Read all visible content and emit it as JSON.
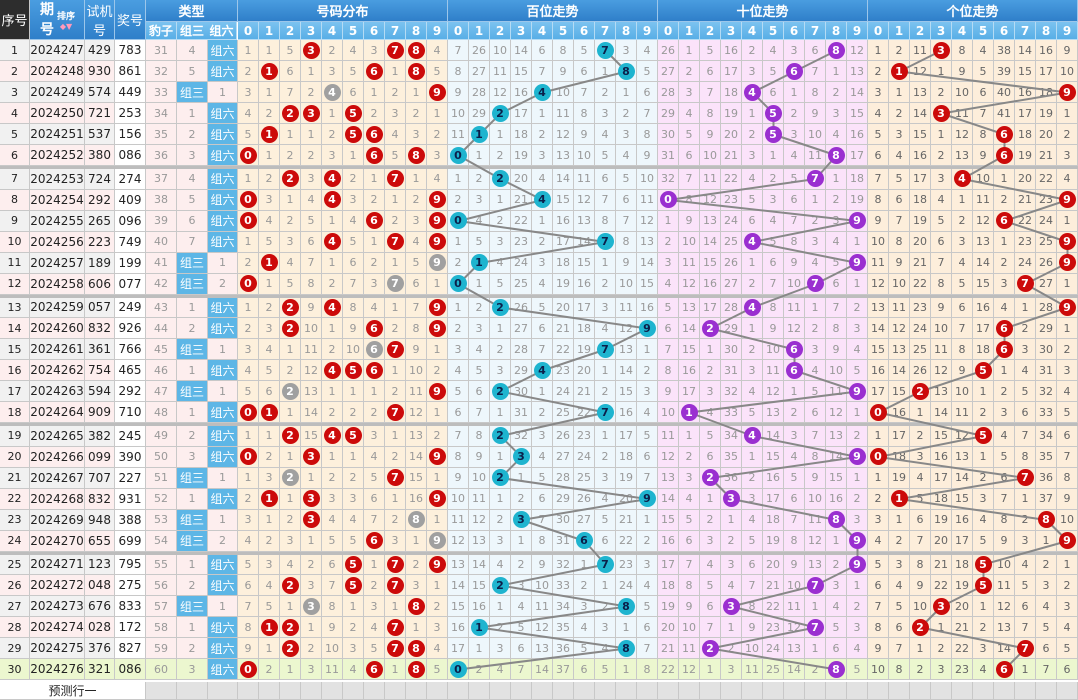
{
  "header": {
    "seq": "序号",
    "period": "期号",
    "sort": "排序",
    "test": "试机号",
    "award": "奖号",
    "type": "类型",
    "type_cols": [
      "豹子",
      "组三",
      "组六"
    ],
    "sections": [
      "号码分布",
      "百位走势",
      "十位走势",
      "个位走势"
    ],
    "digits": [
      "0",
      "1",
      "2",
      "3",
      "4",
      "5",
      "6",
      "7",
      "8",
      "9"
    ]
  },
  "labels": {
    "zu3": "组三",
    "zu6": "组六",
    "predict": "预测行一"
  },
  "colors": {
    "dist_ball": "#cc0a0a",
    "dist_repeat_ball": "#a0a0a0",
    "hundreds_ball": "#1eb4cf",
    "tens_ball": "#9a2fd0",
    "units_ball": "#cc0a0a",
    "line": "#888888",
    "dist_bg": "#fdf0dc",
    "hundreds_bg": "#eef7fc",
    "tens_bg": "#fbe3fa",
    "units_bg": "#fdeedb",
    "last_row_bg": "#ecf7cf"
  },
  "first_row_misses": {
    "baozi": 31,
    "zusan": 4,
    "distribution": [
      1,
      1,
      5,
      0,
      2,
      4,
      3,
      0,
      0,
      4
    ],
    "hundreds": [
      7,
      26,
      10,
      14,
      6,
      8,
      5,
      0,
      3,
      4
    ],
    "tens": [
      26,
      1,
      5,
      16,
      2,
      4,
      3,
      6,
      0,
      12
    ],
    "units": [
      1,
      2,
      11,
      0,
      8,
      4,
      38,
      14,
      16,
      9
    ]
  },
  "rows": [
    {
      "seq": "1",
      "period": "2024247",
      "test": "429",
      "award": "783"
    },
    {
      "seq": "2",
      "period": "2024248",
      "test": "930",
      "award": "861"
    },
    {
      "seq": "3",
      "period": "2024249",
      "test": "574",
      "award": "449"
    },
    {
      "seq": "4",
      "period": "2024250",
      "test": "721",
      "award": "253"
    },
    {
      "seq": "5",
      "period": "2024251",
      "test": "537",
      "award": "156"
    },
    {
      "seq": "6",
      "period": "2024252",
      "test": "380",
      "award": "086"
    },
    {
      "seq": "7",
      "period": "2024253",
      "test": "724",
      "award": "274"
    },
    {
      "seq": "8",
      "period": "2024254",
      "test": "292",
      "award": "409"
    },
    {
      "seq": "9",
      "period": "2024255",
      "test": "265",
      "award": "096"
    },
    {
      "seq": "10",
      "period": "2024256",
      "test": "223",
      "award": "749"
    },
    {
      "seq": "11",
      "period": "2024257",
      "test": "189",
      "award": "199"
    },
    {
      "seq": "12",
      "period": "2024258",
      "test": "606",
      "award": "077"
    },
    {
      "seq": "13",
      "period": "2024259",
      "test": "057",
      "award": "249"
    },
    {
      "seq": "14",
      "period": "2024260",
      "test": "832",
      "award": "926"
    },
    {
      "seq": "15",
      "period": "2024261",
      "test": "361",
      "award": "766"
    },
    {
      "seq": "16",
      "period": "2024262",
      "test": "754",
      "award": "465"
    },
    {
      "seq": "17",
      "period": "2024263",
      "test": "594",
      "award": "292"
    },
    {
      "seq": "18",
      "period": "2024264",
      "test": "909",
      "award": "710"
    },
    {
      "seq": "19",
      "period": "2024265",
      "test": "382",
      "award": "245"
    },
    {
      "seq": "20",
      "period": "2024266",
      "test": "099",
      "award": "390"
    },
    {
      "seq": "21",
      "period": "2024267",
      "test": "707",
      "award": "227"
    },
    {
      "seq": "22",
      "period": "2024268",
      "test": "832",
      "award": "931"
    },
    {
      "seq": "23",
      "period": "2024269",
      "test": "948",
      "award": "388"
    },
    {
      "seq": "24",
      "period": "2024270",
      "test": "655",
      "award": "699"
    },
    {
      "seq": "25",
      "period": "2024271",
      "test": "123",
      "award": "795"
    },
    {
      "seq": "26",
      "period": "2024272",
      "test": "048",
      "award": "275"
    },
    {
      "seq": "27",
      "period": "2024273",
      "test": "676",
      "award": "833"
    },
    {
      "seq": "28",
      "period": "2024274",
      "test": "028",
      "award": "172"
    },
    {
      "seq": "29",
      "period": "2024275",
      "test": "376",
      "award": "827"
    },
    {
      "seq": "30",
      "period": "2024276",
      "test": "321",
      "award": "086"
    }
  ]
}
